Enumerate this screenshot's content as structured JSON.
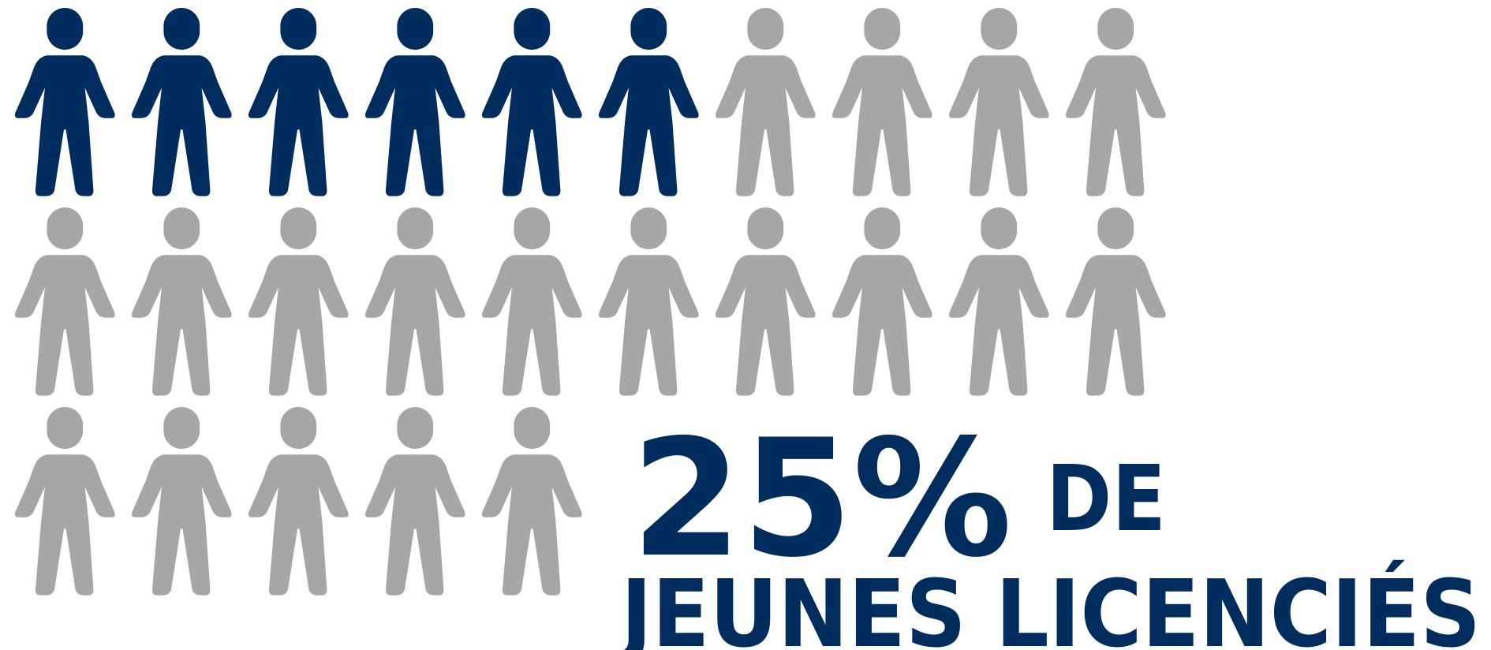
{
  "chart_data": {
    "type": "pictogram",
    "icon_count": 25,
    "highlighted": 6,
    "columns": 10,
    "highlight_color": "#002d5e",
    "base_color": "#a6a6a6",
    "value": 25,
    "value_label": "25%",
    "label": "DE",
    "subtitle": "JEUNES LICENCIÉS"
  }
}
